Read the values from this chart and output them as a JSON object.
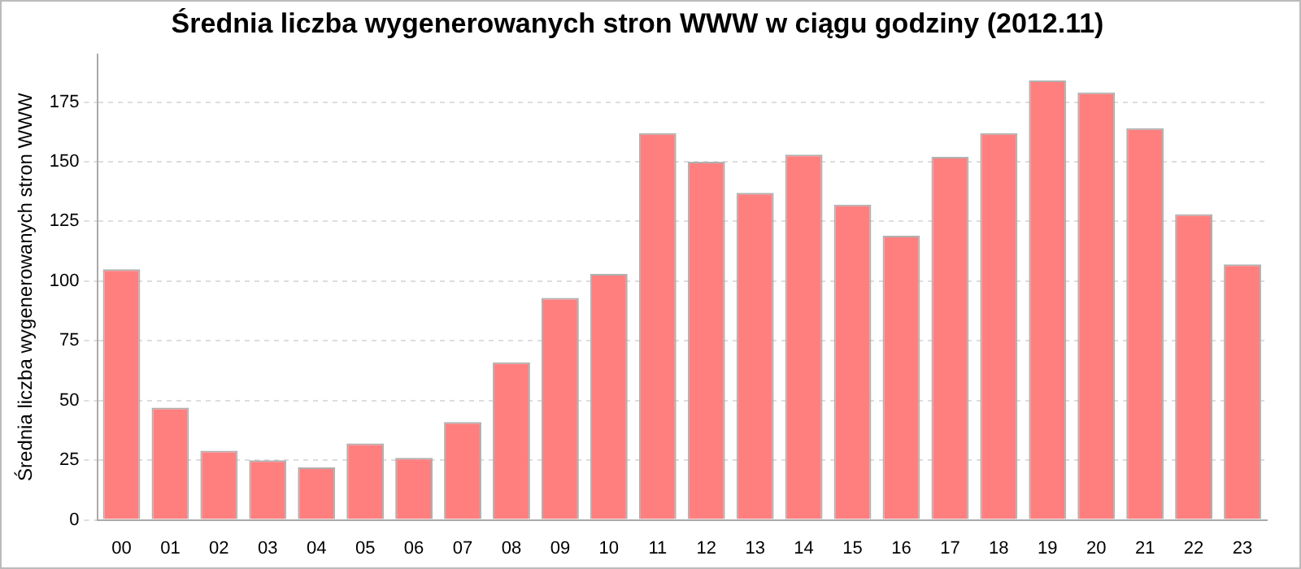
{
  "chart_data": {
    "type": "bar",
    "title": "Średnia liczba wygenerowanych stron WWW w ciągu godziny (2012.11)",
    "ylabel": "Średnia liczba wygenerowanych stron WWW",
    "categories": [
      "00",
      "01",
      "02",
      "03",
      "04",
      "05",
      "06",
      "07",
      "08",
      "09",
      "10",
      "11",
      "12",
      "13",
      "14",
      "15",
      "16",
      "17",
      "18",
      "19",
      "20",
      "21",
      "22",
      "23"
    ],
    "values": [
      105,
      47,
      29,
      25,
      22,
      32,
      26,
      41,
      66,
      93,
      103,
      162,
      150,
      137,
      153,
      132,
      119,
      152,
      162,
      184,
      179,
      164,
      128,
      107
    ],
    "color": "#ff7f7f",
    "ylim": [
      0,
      195
    ],
    "yticks": [
      0,
      25,
      50,
      75,
      100,
      125,
      150,
      175
    ],
    "grid": "y",
    "legend": false
  }
}
